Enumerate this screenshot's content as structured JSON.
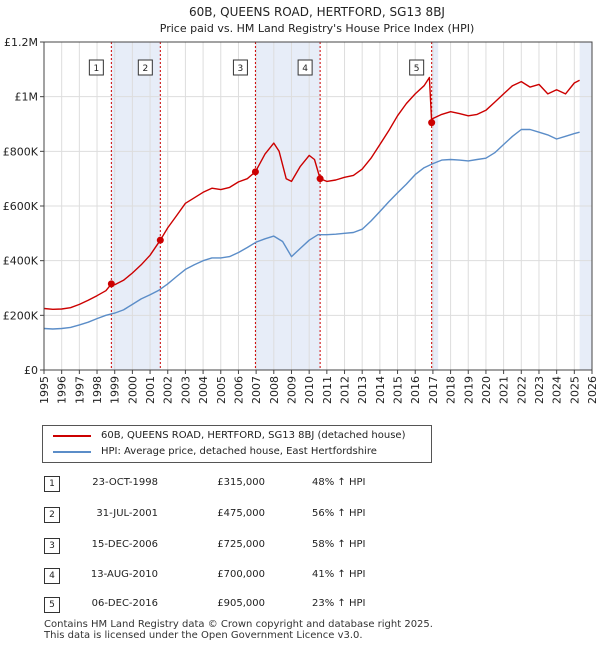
{
  "chart_data": {
    "type": "line",
    "title": "60B, QUEENS ROAD, HERTFORD, SG13 8BJ",
    "subtitle": "Price paid vs. HM Land Registry's House Price Index (HPI)",
    "xlim": [
      1995,
      2026
    ],
    "ylim": [
      0,
      1200000
    ],
    "yticks": [
      {
        "value": 0,
        "label": "£0"
      },
      {
        "value": 200000,
        "label": "£200K"
      },
      {
        "value": 400000,
        "label": "£400K"
      },
      {
        "value": 600000,
        "label": "£600K"
      },
      {
        "value": 800000,
        "label": "£800K"
      },
      {
        "value": 1000000,
        "label": "£1M"
      },
      {
        "value": 1200000,
        "label": "£1.2M"
      }
    ],
    "xticks": [
      "1995",
      "1996",
      "1997",
      "1998",
      "1999",
      "2000",
      "2001",
      "2002",
      "2003",
      "2004",
      "2005",
      "2006",
      "2007",
      "2008",
      "2009",
      "2010",
      "2011",
      "2012",
      "2013",
      "2014",
      "2015",
      "2016",
      "2017",
      "2018",
      "2019",
      "2020",
      "2021",
      "2022",
      "2023",
      "2024",
      "2025",
      "2026"
    ],
    "shaded_ranges": [
      [
        1998.81,
        2001.58
      ],
      [
        2006.96,
        2010.62
      ],
      [
        2016.93,
        2017.3
      ],
      [
        2025.3,
        2026
      ]
    ],
    "series": [
      {
        "name": "60B, QUEENS ROAD, HERTFORD, SG13 8BJ (detached house)",
        "color": "#cc0000",
        "x": [
          1995.0,
          1995.5,
          1996.0,
          1996.5,
          1997.0,
          1997.5,
          1998.0,
          1998.5,
          1998.81,
          1999.0,
          1999.5,
          2000.0,
          2000.5,
          2001.0,
          2001.58,
          2002.0,
          2002.5,
          2003.0,
          2003.5,
          2004.0,
          2004.5,
          2005.0,
          2005.5,
          2006.0,
          2006.5,
          2006.96,
          2007.5,
          2008.0,
          2008.3,
          2008.7,
          2009.0,
          2009.5,
          2010.0,
          2010.3,
          2010.62,
          2011.0,
          2011.5,
          2012.0,
          2012.5,
          2013.0,
          2013.5,
          2014.0,
          2014.5,
          2015.0,
          2015.5,
          2016.0,
          2016.5,
          2016.8,
          2016.93,
          2017.0,
          2017.5,
          2018.0,
          2018.5,
          2019.0,
          2019.5,
          2020.0,
          2020.5,
          2021.0,
          2021.5,
          2022.0,
          2022.5,
          2023.0,
          2023.5,
          2024.0,
          2024.5,
          2025.0,
          2025.3
        ],
        "values": [
          225000,
          222000,
          223000,
          228000,
          240000,
          255000,
          272000,
          290000,
          315000,
          312000,
          328000,
          355000,
          385000,
          420000,
          475000,
          520000,
          565000,
          610000,
          630000,
          650000,
          665000,
          660000,
          668000,
          688000,
          700000,
          725000,
          790000,
          830000,
          800000,
          700000,
          690000,
          745000,
          785000,
          770000,
          700000,
          690000,
          695000,
          705000,
          712000,
          735000,
          775000,
          825000,
          875000,
          930000,
          975000,
          1010000,
          1040000,
          1070000,
          905000,
          920000,
          935000,
          945000,
          938000,
          930000,
          935000,
          950000,
          980000,
          1010000,
          1040000,
          1055000,
          1035000,
          1045000,
          1010000,
          1025000,
          1010000,
          1050000,
          1060000
        ]
      },
      {
        "name": "HPI: Average price, detached house, East Hertfordshire",
        "color": "#5b8dc8",
        "x": [
          1995.0,
          1995.5,
          1996.0,
          1996.5,
          1997.0,
          1997.5,
          1998.0,
          1998.5,
          1999.0,
          1999.5,
          2000.0,
          2000.5,
          2001.0,
          2001.5,
          2002.0,
          2002.5,
          2003.0,
          2003.5,
          2004.0,
          2004.5,
          2005.0,
          2005.5,
          2006.0,
          2006.5,
          2007.0,
          2007.5,
          2008.0,
          2008.5,
          2009.0,
          2009.5,
          2010.0,
          2010.5,
          2011.0,
          2011.5,
          2012.0,
          2012.5,
          2013.0,
          2013.5,
          2014.0,
          2014.5,
          2015.0,
          2015.5,
          2016.0,
          2016.5,
          2017.0,
          2017.5,
          2018.0,
          2018.5,
          2019.0,
          2019.5,
          2020.0,
          2020.5,
          2021.0,
          2021.5,
          2022.0,
          2022.5,
          2023.0,
          2023.5,
          2024.0,
          2024.5,
          2025.0,
          2025.3
        ],
        "values": [
          152000,
          150000,
          152000,
          156000,
          165000,
          175000,
          188000,
          200000,
          208000,
          220000,
          240000,
          260000,
          275000,
          292000,
          315000,
          342000,
          368000,
          385000,
          400000,
          410000,
          410000,
          415000,
          430000,
          448000,
          468000,
          480000,
          490000,
          470000,
          415000,
          445000,
          475000,
          495000,
          495000,
          497000,
          500000,
          503000,
          515000,
          545000,
          580000,
          615000,
          648000,
          680000,
          715000,
          740000,
          755000,
          768000,
          770000,
          768000,
          765000,
          770000,
          775000,
          795000,
          825000,
          855000,
          880000,
          880000,
          870000,
          860000,
          845000,
          855000,
          865000,
          870000
        ]
      }
    ],
    "sales": [
      {
        "label": "1",
        "x": 1998.81,
        "value": 315000
      },
      {
        "label": "2",
        "x": 2001.58,
        "value": 475000
      },
      {
        "label": "3",
        "x": 2006.96,
        "value": 725000
      },
      {
        "label": "4",
        "x": 2010.62,
        "value": 700000
      },
      {
        "label": "5",
        "x": 2016.93,
        "value": 905000
      }
    ]
  },
  "legend": {
    "items": [
      {
        "label": "60B, QUEENS ROAD, HERTFORD, SG13 8BJ (detached house)",
        "color": "#cc0000"
      },
      {
        "label": "HPI: Average price, detached house, East Hertfordshire",
        "color": "#5b8dc8"
      }
    ]
  },
  "transactions": [
    {
      "num": "1",
      "date": "23-OCT-1998",
      "price": "£315,000",
      "hpi": "48% ↑ HPI"
    },
    {
      "num": "2",
      "date": "31-JUL-2001",
      "price": "£475,000",
      "hpi": "56% ↑ HPI"
    },
    {
      "num": "3",
      "date": "15-DEC-2006",
      "price": "£725,000",
      "hpi": "58% ↑ HPI"
    },
    {
      "num": "4",
      "date": "13-AUG-2010",
      "price": "£700,000",
      "hpi": "41% ↑ HPI"
    },
    {
      "num": "5",
      "date": "06-DEC-2016",
      "price": "£905,000",
      "hpi": "23% ↑ HPI"
    }
  ],
  "footer": {
    "line1": "Contains HM Land Registry data © Crown copyright and database right 2025.",
    "line2": "This data is licensed under the Open Government Licence v3.0."
  }
}
